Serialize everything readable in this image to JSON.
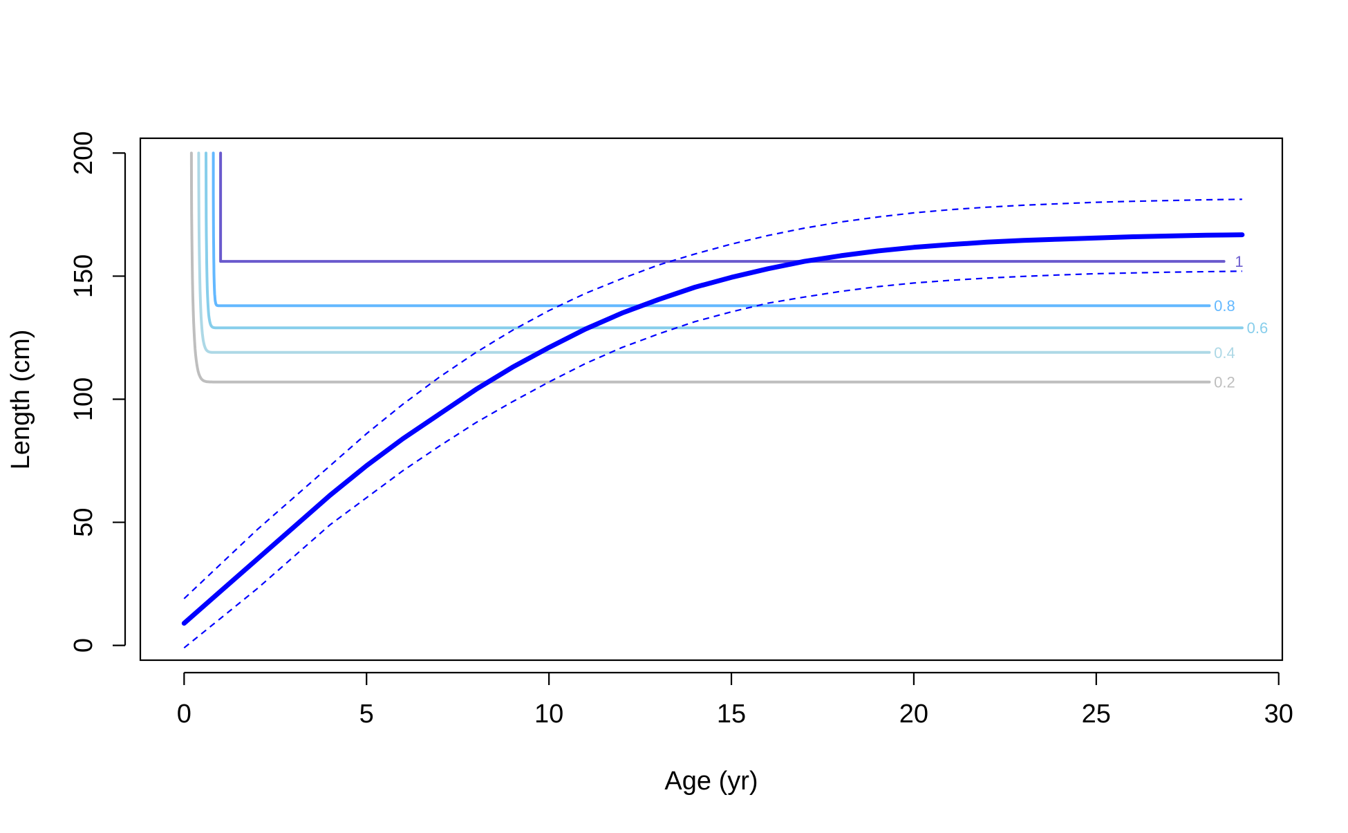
{
  "chart_data": {
    "type": "line",
    "xlabel": "Age (yr)",
    "ylabel": "Length (cm)",
    "xlim": [
      -1.2,
      30.1
    ],
    "ylim": [
      -6,
      206
    ],
    "x_ticks": [
      0,
      5,
      10,
      15,
      20,
      25,
      30
    ],
    "x_tick_labels": [
      "0",
      "5",
      "10",
      "15",
      "20",
      "25",
      "30"
    ],
    "y_ticks": [
      0,
      50,
      100,
      150,
      200
    ],
    "y_tick_labels": [
      "0",
      "50",
      "100",
      "150",
      "200"
    ],
    "grid": false,
    "growth_curve": {
      "color": "#0000ff",
      "style": "solid",
      "x": [
        0,
        1,
        2,
        3,
        4,
        5,
        6,
        7,
        8,
        9,
        10,
        11,
        12,
        13,
        14,
        15,
        16,
        17,
        18,
        19,
        20,
        21,
        22,
        23,
        24,
        25,
        26,
        27,
        28,
        29
      ],
      "y": [
        9,
        22,
        35,
        48,
        61,
        73,
        84,
        94,
        104,
        113,
        121,
        128.5,
        135,
        140.5,
        145.5,
        149.5,
        153,
        156,
        158.3,
        160.2,
        161.7,
        162.8,
        163.8,
        164.5,
        165,
        165.5,
        166,
        166.3,
        166.6,
        166.8
      ]
    },
    "upper_interval": {
      "color": "#0000ff",
      "style": "dashed",
      "x": [
        0,
        1,
        2,
        3,
        4,
        5,
        6,
        7,
        8,
        9,
        10,
        11,
        12,
        13,
        14,
        15,
        16,
        17,
        18,
        19,
        20,
        21,
        22,
        23,
        24,
        25,
        26,
        27,
        28,
        29
      ],
      "y": [
        19,
        33,
        47,
        60,
        73,
        86,
        98,
        109,
        119,
        128,
        136,
        143,
        149,
        154.5,
        159,
        163,
        166.5,
        169.5,
        172,
        174,
        175.7,
        177,
        178,
        178.8,
        179.4,
        180,
        180.4,
        180.7,
        181,
        181.2
      ]
    },
    "lower_interval": {
      "color": "#0000ff",
      "style": "dashed",
      "x": [
        0,
        1,
        2,
        3,
        4,
        5,
        6,
        7,
        8,
        9,
        10,
        11,
        12,
        13,
        14,
        15,
        16,
        17,
        18,
        19,
        20,
        21,
        22,
        23,
        24,
        25,
        26,
        27,
        28,
        29
      ],
      "y": [
        -1,
        11,
        23,
        36,
        49,
        60,
        71,
        81,
        90.5,
        99,
        107,
        114.5,
        121,
        126.5,
        131.5,
        135.5,
        139,
        141.5,
        143.8,
        145.7,
        147.2,
        148.3,
        149.2,
        149.9,
        150.5,
        151,
        151.3,
        151.6,
        151.8,
        152
      ]
    },
    "selectivity_curves": [
      {
        "label": "1",
        "color": "#6a5acd",
        "x_start": 1.0,
        "plateau": 156,
        "x_end": 28.5
      },
      {
        "label": "0.8",
        "color": "#63b8ff",
        "x_start": 0.8,
        "plateau": 138,
        "x_end": 28.1
      },
      {
        "label": "0.6",
        "color": "#87ceeb",
        "x_start": 0.6,
        "plateau": 129,
        "x_end": 29.0
      },
      {
        "label": "0.4",
        "color": "#add8e6",
        "x_start": 0.4,
        "plateau": 119,
        "x_end": 28.1
      },
      {
        "label": "0.2",
        "color": "#bebebe",
        "x_start": 0.2,
        "plateau": 107,
        "x_end": 28.1
      }
    ]
  }
}
